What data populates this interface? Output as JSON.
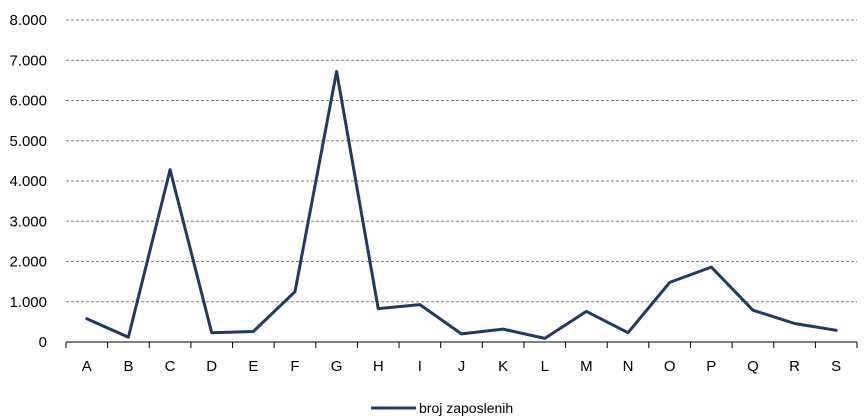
{
  "chart_data": {
    "type": "line",
    "title": "",
    "xlabel": "",
    "ylabel": "",
    "categories": [
      "A",
      "B",
      "C",
      "D",
      "E",
      "F",
      "G",
      "H",
      "I",
      "J",
      "K",
      "L",
      "M",
      "N",
      "O",
      "P",
      "Q",
      "R",
      "S"
    ],
    "series": [
      {
        "name": "broj zaposlenih",
        "values": [
          580,
          120,
          4280,
          230,
          260,
          1250,
          6720,
          830,
          930,
          200,
          320,
          90,
          760,
          230,
          1480,
          1860,
          790,
          460,
          290
        ],
        "color": "#1f3a68"
      }
    ],
    "ylim": [
      0,
      8000
    ],
    "yticks": [
      0,
      1000,
      2000,
      3000,
      4000,
      5000,
      6000,
      7000,
      8000
    ],
    "ytick_labels": [
      "0",
      "1.000",
      "2.000",
      "3.000",
      "4.000",
      "5.000",
      "6.000",
      "7.000",
      "8.000"
    ],
    "grid": true,
    "legend_position": "bottom-center"
  }
}
